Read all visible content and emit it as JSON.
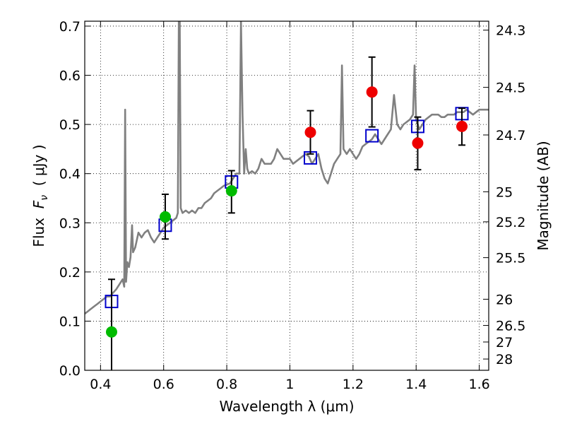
{
  "chart_data": {
    "type": "scatter",
    "xlabel": "Wavelength  λ (μm)",
    "ylabel": "Flux  F_ν  ( μJy )",
    "ylabel_parts": {
      "prefix": "Flux  ",
      "symbol": "F",
      "subscript": "ν",
      "suffix": "  ( μJy )"
    },
    "y2label": "Magnitude (AB)",
    "xlim": [
      0.35,
      1.63
    ],
    "ylim": [
      0.0,
      0.71
    ],
    "grid": true,
    "grid_style": "dotted",
    "x_ticks": [
      0.4,
      0.6,
      0.8,
      1.0,
      1.2,
      1.4,
      1.6
    ],
    "x_tick_labels": [
      "0.4",
      "0.6",
      "0.8",
      "1",
      "1.2",
      "1.4",
      "1.6"
    ],
    "y_ticks": [
      0.0,
      0.1,
      0.2,
      0.3,
      0.4,
      0.5,
      0.6,
      0.7
    ],
    "y_tick_labels": [
      "0.0",
      "0.1",
      "0.2",
      "0.3",
      "0.4",
      "0.5",
      "0.6",
      "0.7"
    ],
    "y2_ticks": [
      {
        "label": "24.3",
        "mag": 24.3
      },
      {
        "label": "24.5",
        "mag": 24.5
      },
      {
        "label": "24.7",
        "mag": 24.7
      },
      {
        "label": "25",
        "mag": 25.0
      },
      {
        "label": "25.2",
        "mag": 25.2
      },
      {
        "label": "25.5",
        "mag": 25.5
      },
      {
        "label": "26",
        "mag": 26.0
      },
      {
        "label": "26.5",
        "mag": 26.5
      },
      {
        "label": "27",
        "mag": 27.0
      },
      {
        "label": "28",
        "mag": 28.0
      }
    ],
    "colors": {
      "model": "#808080",
      "green": "#00bb00",
      "red": "#ee0000",
      "squares": "#0000cc",
      "errorbar": "#000000"
    },
    "series": [
      {
        "type": "line",
        "points": [
          [
            0.35,
            0.115
          ],
          [
            0.36,
            0.12
          ],
          [
            0.37,
            0.125
          ],
          [
            0.38,
            0.13
          ],
          [
            0.39,
            0.135
          ],
          [
            0.4,
            0.14
          ],
          [
            0.41,
            0.145
          ],
          [
            0.42,
            0.15
          ],
          [
            0.43,
            0.15
          ],
          [
            0.44,
            0.158
          ],
          [
            0.45,
            0.165
          ],
          [
            0.46,
            0.175
          ],
          [
            0.47,
            0.185
          ],
          [
            0.475,
            0.17
          ],
          [
            0.478,
            0.53
          ],
          [
            0.481,
            0.18
          ],
          [
            0.485,
            0.22
          ],
          [
            0.49,
            0.21
          ],
          [
            0.495,
            0.23
          ],
          [
            0.5,
            0.295
          ],
          [
            0.503,
            0.24
          ],
          [
            0.51,
            0.25
          ],
          [
            0.52,
            0.28
          ],
          [
            0.53,
            0.27
          ],
          [
            0.54,
            0.28
          ],
          [
            0.55,
            0.285
          ],
          [
            0.56,
            0.27
          ],
          [
            0.57,
            0.26
          ],
          [
            0.58,
            0.27
          ],
          [
            0.59,
            0.28
          ],
          [
            0.6,
            0.29
          ],
          [
            0.61,
            0.295
          ],
          [
            0.62,
            0.3
          ],
          [
            0.63,
            0.305
          ],
          [
            0.64,
            0.31
          ],
          [
            0.645,
            0.32
          ],
          [
            0.648,
            0.71
          ],
          [
            0.651,
            0.71
          ],
          [
            0.654,
            0.33
          ],
          [
            0.66,
            0.32
          ],
          [
            0.67,
            0.325
          ],
          [
            0.68,
            0.32
          ],
          [
            0.69,
            0.325
          ],
          [
            0.7,
            0.32
          ],
          [
            0.71,
            0.33
          ],
          [
            0.72,
            0.33
          ],
          [
            0.73,
            0.34
          ],
          [
            0.74,
            0.345
          ],
          [
            0.75,
            0.35
          ],
          [
            0.76,
            0.36
          ],
          [
            0.77,
            0.365
          ],
          [
            0.78,
            0.37
          ],
          [
            0.79,
            0.375
          ],
          [
            0.8,
            0.378
          ],
          [
            0.81,
            0.38
          ],
          [
            0.82,
            0.39
          ],
          [
            0.83,
            0.4
          ],
          [
            0.84,
            0.4
          ],
          [
            0.845,
            0.71
          ],
          [
            0.85,
            0.52
          ],
          [
            0.855,
            0.4
          ],
          [
            0.86,
            0.45
          ],
          [
            0.865,
            0.41
          ],
          [
            0.87,
            0.4
          ],
          [
            0.88,
            0.405
          ],
          [
            0.89,
            0.4
          ],
          [
            0.9,
            0.41
          ],
          [
            0.91,
            0.43
          ],
          [
            0.92,
            0.42
          ],
          [
            0.93,
            0.42
          ],
          [
            0.94,
            0.42
          ],
          [
            0.95,
            0.43
          ],
          [
            0.96,
            0.45
          ],
          [
            0.97,
            0.44
          ],
          [
            0.98,
            0.43
          ],
          [
            0.99,
            0.43
          ],
          [
            1.0,
            0.43
          ],
          [
            1.01,
            0.42
          ],
          [
            1.02,
            0.425
          ],
          [
            1.03,
            0.43
          ],
          [
            1.04,
            0.435
          ],
          [
            1.05,
            0.44
          ],
          [
            1.06,
            0.435
          ],
          [
            1.07,
            0.42
          ],
          [
            1.08,
            0.43
          ],
          [
            1.09,
            0.44
          ],
          [
            1.1,
            0.41
          ],
          [
            1.11,
            0.39
          ],
          [
            1.12,
            0.38
          ],
          [
            1.13,
            0.4
          ],
          [
            1.14,
            0.42
          ],
          [
            1.15,
            0.43
          ],
          [
            1.16,
            0.44
          ],
          [
            1.165,
            0.62
          ],
          [
            1.17,
            0.45
          ],
          [
            1.18,
            0.44
          ],
          [
            1.19,
            0.45
          ],
          [
            1.2,
            0.44
          ],
          [
            1.21,
            0.43
          ],
          [
            1.22,
            0.44
          ],
          [
            1.23,
            0.455
          ],
          [
            1.24,
            0.46
          ],
          [
            1.25,
            0.465
          ],
          [
            1.26,
            0.47
          ],
          [
            1.27,
            0.48
          ],
          [
            1.28,
            0.47
          ],
          [
            1.29,
            0.46
          ],
          [
            1.3,
            0.47
          ],
          [
            1.31,
            0.48
          ],
          [
            1.32,
            0.49
          ],
          [
            1.33,
            0.56
          ],
          [
            1.34,
            0.5
          ],
          [
            1.35,
            0.49
          ],
          [
            1.36,
            0.5
          ],
          [
            1.37,
            0.505
          ],
          [
            1.38,
            0.51
          ],
          [
            1.39,
            0.52
          ],
          [
            1.395,
            0.62
          ],
          [
            1.4,
            0.51
          ],
          [
            1.41,
            0.49
          ],
          [
            1.42,
            0.5
          ],
          [
            1.43,
            0.51
          ],
          [
            1.44,
            0.515
          ],
          [
            1.45,
            0.52
          ],
          [
            1.46,
            0.52
          ],
          [
            1.47,
            0.52
          ],
          [
            1.48,
            0.515
          ],
          [
            1.49,
            0.515
          ],
          [
            1.5,
            0.52
          ],
          [
            1.51,
            0.52
          ],
          [
            1.52,
            0.52
          ],
          [
            1.53,
            0.525
          ],
          [
            1.54,
            0.525
          ],
          [
            1.55,
            0.525
          ],
          [
            1.56,
            0.53
          ],
          [
            1.57,
            0.525
          ],
          [
            1.58,
            0.52
          ],
          [
            1.59,
            0.525
          ],
          [
            1.6,
            0.53
          ],
          [
            1.61,
            0.53
          ],
          [
            1.62,
            0.53
          ],
          [
            1.63,
            0.53
          ]
        ]
      },
      {
        "type": "squares",
        "points": [
          {
            "x": 0.435,
            "y": 0.14
          },
          {
            "x": 0.605,
            "y": 0.295
          },
          {
            "x": 0.815,
            "y": 0.383
          },
          {
            "x": 1.065,
            "y": 0.432
          },
          {
            "x": 1.26,
            "y": 0.477
          },
          {
            "x": 1.405,
            "y": 0.496
          },
          {
            "x": 1.545,
            "y": 0.522
          }
        ]
      },
      {
        "type": "points-green",
        "points": [
          {
            "x": 0.435,
            "y": 0.078,
            "ylow": 0.0,
            "yhigh": 0.185
          },
          {
            "x": 0.605,
            "y": 0.312,
            "ylow": 0.267,
            "yhigh": 0.358
          },
          {
            "x": 0.815,
            "y": 0.365,
            "ylow": 0.32,
            "yhigh": 0.406
          }
        ]
      },
      {
        "type": "points-red",
        "points": [
          {
            "x": 1.065,
            "y": 0.484,
            "ylow": 0.44,
            "yhigh": 0.528
          },
          {
            "x": 1.26,
            "y": 0.566,
            "ylow": 0.495,
            "yhigh": 0.637
          },
          {
            "x": 1.405,
            "y": 0.462,
            "ylow": 0.408,
            "yhigh": 0.515
          },
          {
            "x": 1.545,
            "y": 0.496,
            "ylow": 0.458,
            "yhigh": 0.533
          }
        ]
      }
    ]
  }
}
